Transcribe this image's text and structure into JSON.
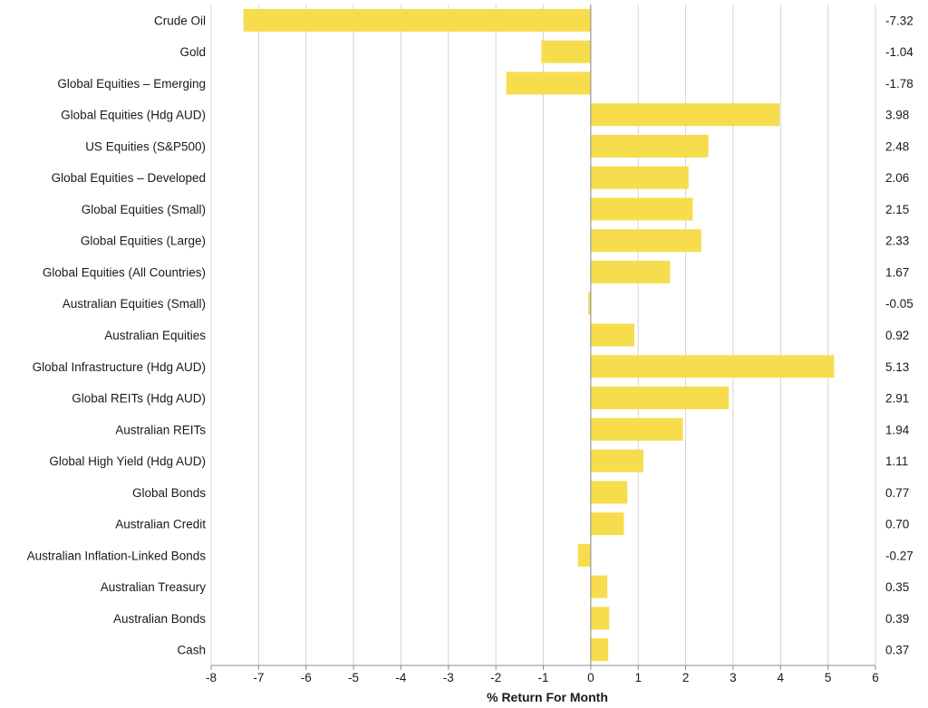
{
  "colors": {
    "bar": "#f7dc4d",
    "grid": "#d4d4d4",
    "axis": "#8c8c8c"
  },
  "chart_data": {
    "type": "bar",
    "orientation": "horizontal",
    "title": "",
    "xlabel": "% Return For Month",
    "ylabel": "",
    "xlim": [
      -8,
      6
    ],
    "xticks": [
      "-8",
      "-7",
      "-6",
      "-5",
      "-4",
      "-3",
      "-2",
      "-1",
      "0",
      "1",
      "2",
      "3",
      "4",
      "5",
      "6"
    ],
    "grid": true,
    "categories": [
      "Crude Oil",
      "Gold",
      "Global Equities – Emerging",
      "Global Equities (Hdg AUD)",
      "US Equities (S&P500)",
      "Global Equities – Developed",
      "Global Equities (Small)",
      "Global Equities (Large)",
      "Global Equities (All Countries)",
      "Australian Equities (Small)",
      "Australian Equities",
      "Global Infrastructure (Hdg AUD)",
      "Global REITs (Hdg AUD)",
      "Australian REITs",
      "Global High Yield (Hdg AUD)",
      "Global Bonds ",
      "Australian Credit",
      "Australian Inflation-Linked Bonds ",
      "Australian Treasury",
      "Australian Bonds ",
      "Cash"
    ],
    "values": [
      -7.32,
      -1.04,
      -1.78,
      3.98,
      2.48,
      2.06,
      2.15,
      2.33,
      1.67,
      -0.05,
      0.92,
      5.13,
      2.91,
      1.94,
      1.11,
      0.77,
      0.7,
      -0.27,
      0.35,
      0.39,
      0.37
    ],
    "value_labels": [
      "-7.32",
      "-1.04",
      "-1.78",
      "3.98",
      "2.48",
      "2.06",
      "2.15",
      "2.33",
      "1.67",
      "-0.05",
      "0.92",
      "5.13",
      "2.91",
      "1.94",
      "1.11",
      "0.77",
      "0.70",
      "-0.27",
      "0.35",
      "0.39",
      "0.37"
    ]
  }
}
